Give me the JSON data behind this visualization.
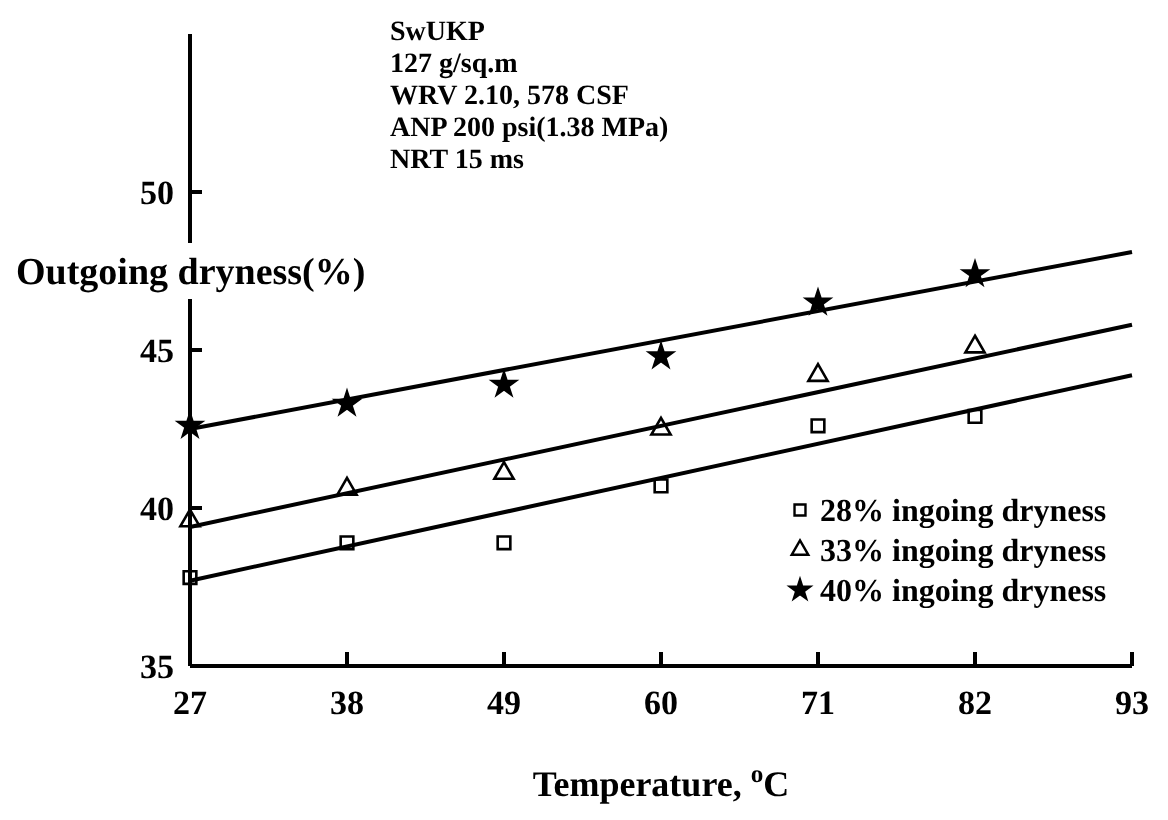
{
  "chart_data": {
    "type": "scatter",
    "xlabel": "Temperature, $^{o}$C",
    "ylabel": "Outgoing dryness(%)",
    "annotations": [
      "SwUKP",
      "127 g/sq.m",
      "WRV 2.10, 578 CSF",
      "ANP 200 psi(1.38 MPa)",
      "NRT 15 ms"
    ],
    "xlim": [
      27,
      93
    ],
    "xticks": [
      27,
      38,
      49,
      60,
      71,
      82,
      93
    ],
    "ylim": [
      35,
      55
    ],
    "yticks": [
      35,
      40,
      45,
      50
    ],
    "legend": "bottom right",
    "grid": false,
    "series": [
      {
        "name": "28% ingoing dryness",
        "color": "#000000",
        "marker": "square",
        "x": [
          27,
          38,
          49,
          60,
          71,
          82
        ],
        "values": [
          37.8,
          38.9,
          38.9,
          40.7,
          42.6,
          42.9
        ]
      },
      {
        "name": "33% ingoing dryness",
        "color": "#000000",
        "marker": "triangle",
        "x": [
          27,
          38,
          49,
          60,
          71,
          82
        ],
        "values": [
          39.6,
          40.6,
          41.1,
          42.5,
          44.2,
          45.1
        ]
      },
      {
        "name": "40% ingoing dryness",
        "color": "#000000",
        "marker": "star",
        "x": [
          27,
          38,
          49,
          60,
          71,
          82
        ],
        "values": [
          42.6,
          43.3,
          43.9,
          44.8,
          46.5,
          47.4
        ]
      },
      {
        "type": "line",
        "color": "#000000",
        "marker": "none",
        "line_style": "solid",
        "x": [
          27,
          93
        ],
        "values": [
          37.7,
          44.2
        ]
      },
      {
        "type": "line",
        "color": "#000000",
        "marker": "none",
        "line_style": "solid",
        "x": [
          27,
          93
        ],
        "values": [
          39.4,
          45.8
        ]
      },
      {
        "type": "line",
        "color": "#000000",
        "marker": "none",
        "line_style": "solid",
        "x": [
          27,
          93
        ],
        "values": [
          42.5,
          48.1
        ]
      }
    ]
  }
}
